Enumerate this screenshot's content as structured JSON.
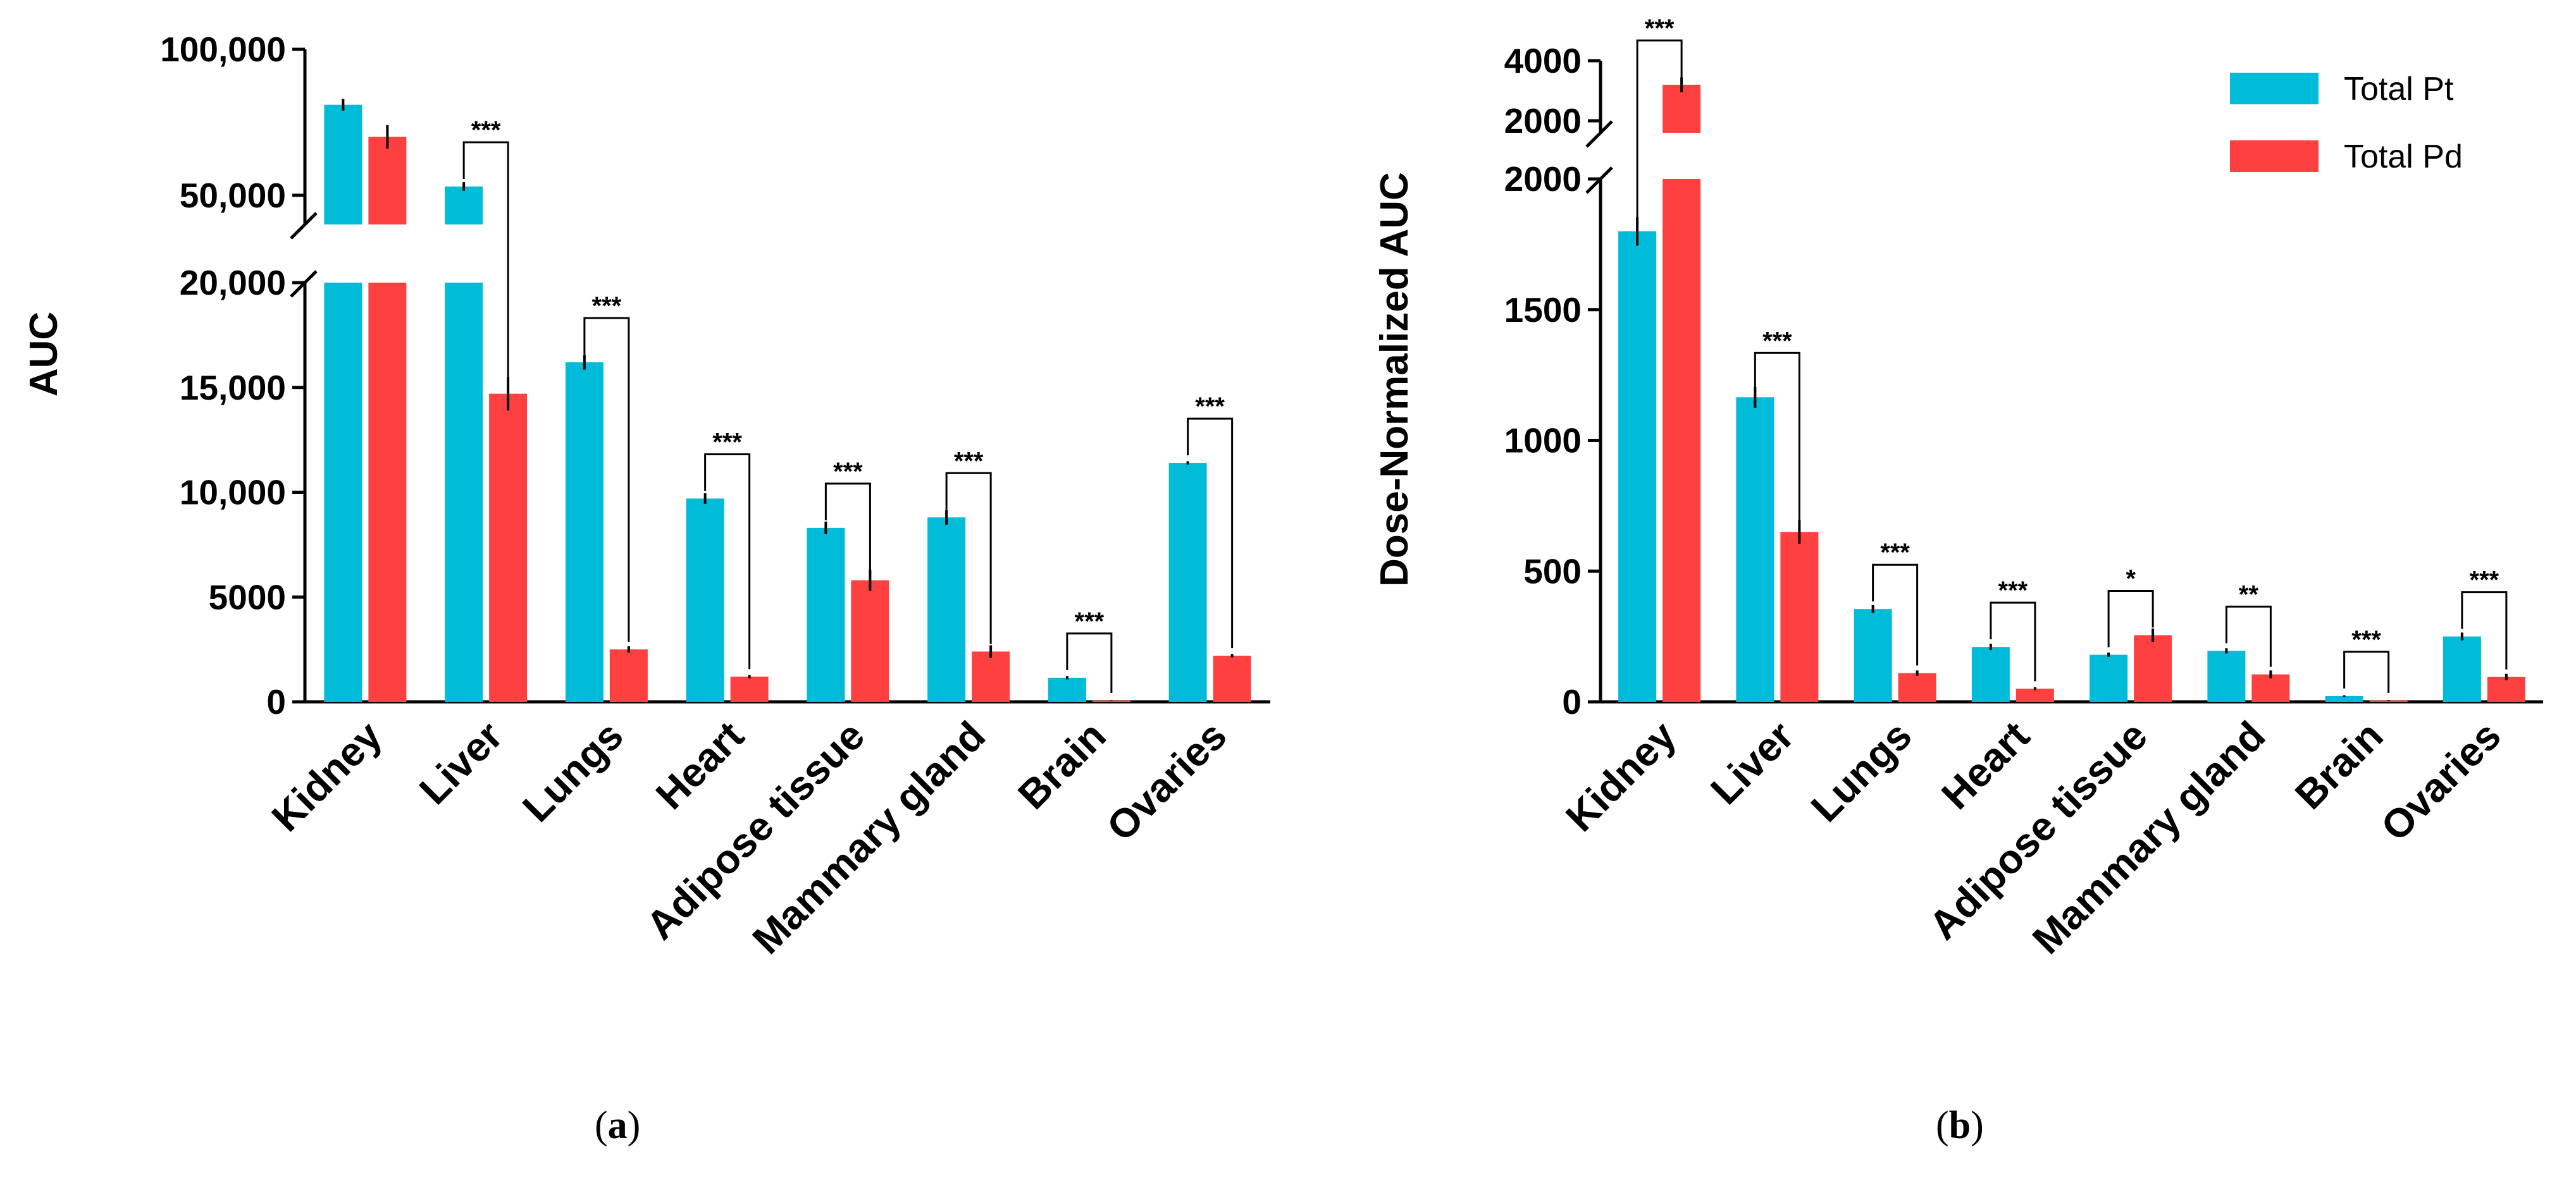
{
  "colors": {
    "pt": "#00BCD8",
    "pd": "#FF4040",
    "axis": "#000000"
  },
  "captions": {
    "a_open": "(",
    "a_letter": "a",
    "a_close": ")",
    "b_open": "(",
    "b_letter": "b",
    "b_close": ")"
  },
  "legend": {
    "pt": "Total Pt",
    "pd": "Total Pd"
  },
  "chart_data": [
    {
      "id": "a",
      "type": "bar",
      "title": "",
      "xlabel": "",
      "ylabel": "AUC",
      "categories": [
        "Kidney",
        "Liver",
        "Lungs",
        "Heart",
        "Adipose tissue",
        "Mammary gland",
        "Brain",
        "Ovaries"
      ],
      "series": [
        {
          "name": "Total Pt",
          "values": [
            81000,
            53000,
            16200,
            9700,
            8300,
            8800,
            1150,
            11400
          ],
          "errors": [
            2000,
            1500,
            350,
            250,
            300,
            350,
            80,
            80
          ]
        },
        {
          "name": "Total Pd",
          "values": [
            70000,
            14700,
            2500,
            1200,
            5800,
            2400,
            60,
            2200
          ],
          "errors": [
            4000,
            800,
            150,
            80,
            500,
            300,
            20,
            80
          ]
        }
      ],
      "axis_break": {
        "lower_max": 20000,
        "upper_min": 40000,
        "upper_max": 100000
      },
      "lower_ticks": [
        0,
        5000,
        10000,
        15000,
        20000
      ],
      "upper_ticks": [
        50000,
        100000
      ],
      "tick_labels": {
        "0": "0",
        "5000": "5000",
        "10000": "10,000",
        "15000": "15,000",
        "20000": "20,000",
        "50000": "50,000",
        "100000": "100,000"
      },
      "significance": [
        "",
        "***",
        "***",
        "***",
        "***",
        "***",
        "***",
        "***"
      ]
    },
    {
      "id": "b",
      "type": "bar",
      "title": "",
      "xlabel": "",
      "ylabel": "Dose-Normalized  AUC",
      "categories": [
        "Kidney",
        "Liver",
        "Lungs",
        "Heart",
        "Adipose tissue",
        "Mammary gland",
        "Brain",
        "Ovaries"
      ],
      "series": [
        {
          "name": "Total Pt",
          "values": [
            1800,
            1165,
            355,
            210,
            180,
            195,
            22,
            250
          ],
          "errors": [
            55,
            40,
            15,
            12,
            8,
            10,
            3,
            15
          ]
        },
        {
          "name": "Total Pd",
          "values": [
            3200,
            650,
            110,
            50,
            255,
            105,
            5,
            95
          ],
          "errors": [
            250,
            45,
            10,
            6,
            25,
            15,
            2,
            12
          ]
        }
      ],
      "axis_break": {
        "lower_max": 2000,
        "upper_min": 1600,
        "upper_max": 4000
      },
      "lower_ticks": [
        0,
        500,
        1000,
        1500,
        2000
      ],
      "upper_ticks": [
        2000,
        4000
      ],
      "tick_labels": {
        "0": "0",
        "500": "500",
        "1000": "1000",
        "1500": "1500",
        "2000": "2000",
        "4000": "4000"
      },
      "significance": [
        "***",
        "***",
        "***",
        "***",
        "*",
        "**",
        "***",
        "***"
      ],
      "legend_position": "top-right"
    }
  ]
}
